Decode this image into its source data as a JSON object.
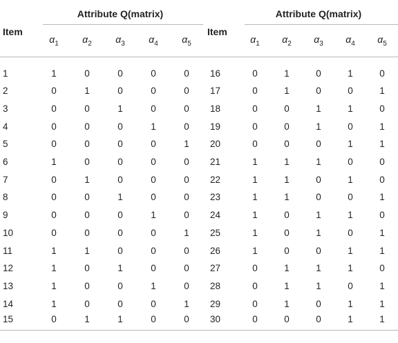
{
  "header": {
    "group_left": "Attribute Q(matrix)",
    "group_right": "Attribute Q(matrix)",
    "item_label": "Item",
    "alpha_symbol": "α",
    "alpha_subs": [
      "1",
      "2",
      "3",
      "4",
      "5"
    ]
  },
  "rows_left": [
    {
      "item": "1",
      "a": [
        "1",
        "0",
        "0",
        "0",
        "0"
      ]
    },
    {
      "item": "2",
      "a": [
        "0",
        "1",
        "0",
        "0",
        "0"
      ]
    },
    {
      "item": "3",
      "a": [
        "0",
        "0",
        "1",
        "0",
        "0"
      ]
    },
    {
      "item": "4",
      "a": [
        "0",
        "0",
        "0",
        "1",
        "0"
      ]
    },
    {
      "item": "5",
      "a": [
        "0",
        "0",
        "0",
        "0",
        "1"
      ]
    },
    {
      "item": "6",
      "a": [
        "1",
        "0",
        "0",
        "0",
        "0"
      ]
    },
    {
      "item": "7",
      "a": [
        "0",
        "1",
        "0",
        "0",
        "0"
      ]
    },
    {
      "item": "8",
      "a": [
        "0",
        "0",
        "1",
        "0",
        "0"
      ]
    },
    {
      "item": "9",
      "a": [
        "0",
        "0",
        "0",
        "1",
        "0"
      ]
    },
    {
      "item": "10",
      "a": [
        "0",
        "0",
        "0",
        "0",
        "1"
      ]
    },
    {
      "item": "11",
      "a": [
        "1",
        "1",
        "0",
        "0",
        "0"
      ]
    },
    {
      "item": "12",
      "a": [
        "1",
        "0",
        "1",
        "0",
        "0"
      ]
    },
    {
      "item": "13",
      "a": [
        "1",
        "0",
        "0",
        "1",
        "0"
      ]
    },
    {
      "item": "14",
      "a": [
        "1",
        "0",
        "0",
        "0",
        "1"
      ]
    },
    {
      "item": "15",
      "a": [
        "0",
        "1",
        "1",
        "0",
        "0"
      ]
    }
  ],
  "rows_right": [
    {
      "item": "16",
      "a": [
        "0",
        "1",
        "0",
        "1",
        "0"
      ]
    },
    {
      "item": "17",
      "a": [
        "0",
        "1",
        "0",
        "0",
        "1"
      ]
    },
    {
      "item": "18",
      "a": [
        "0",
        "0",
        "1",
        "1",
        "0"
      ]
    },
    {
      "item": "19",
      "a": [
        "0",
        "0",
        "1",
        "0",
        "1"
      ]
    },
    {
      "item": "20",
      "a": [
        "0",
        "0",
        "0",
        "1",
        "1"
      ]
    },
    {
      "item": "21",
      "a": [
        "1",
        "1",
        "1",
        "0",
        "0"
      ]
    },
    {
      "item": "22",
      "a": [
        "1",
        "1",
        "0",
        "1",
        "0"
      ]
    },
    {
      "item": "23",
      "a": [
        "1",
        "1",
        "0",
        "0",
        "1"
      ]
    },
    {
      "item": "24",
      "a": [
        "1",
        "0",
        "1",
        "1",
        "0"
      ]
    },
    {
      "item": "25",
      "a": [
        "1",
        "0",
        "1",
        "0",
        "1"
      ]
    },
    {
      "item": "26",
      "a": [
        "1",
        "0",
        "0",
        "1",
        "1"
      ]
    },
    {
      "item": "27",
      "a": [
        "0",
        "1",
        "1",
        "1",
        "0"
      ]
    },
    {
      "item": "28",
      "a": [
        "0",
        "1",
        "1",
        "0",
        "1"
      ]
    },
    {
      "item": "29",
      "a": [
        "0",
        "1",
        "0",
        "1",
        "1"
      ]
    },
    {
      "item": "30",
      "a": [
        "0",
        "0",
        "0",
        "1",
        "1"
      ]
    }
  ]
}
